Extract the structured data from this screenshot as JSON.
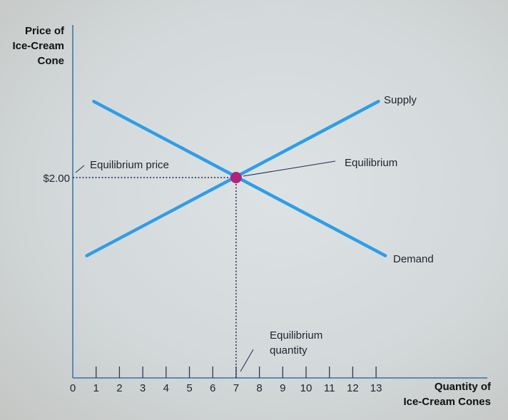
{
  "chart_data": {
    "type": "line",
    "title": "",
    "ylabel_lines": [
      "Price of",
      "Ice-Cream",
      "Cone"
    ],
    "xlabel_lines": [
      "Quantity of",
      "Ice-Cream Cones"
    ],
    "x_ticks": [
      "0",
      "1",
      "2",
      "3",
      "4",
      "5",
      "6",
      "7",
      "8",
      "9",
      "10",
      "11",
      "12",
      "13"
    ],
    "xlim": [
      0,
      17.7
    ],
    "ylim": [
      0,
      3.5
    ],
    "y_tick_label": "$2.00",
    "y_tick_value": 2.0,
    "series": [
      {
        "name": "Supply",
        "color": "#2f9de8",
        "points": [
          [
            0.6,
            1.22
          ],
          [
            13.1,
            2.76
          ]
        ]
      },
      {
        "name": "Demand",
        "color": "#2f9de8",
        "points": [
          [
            0.9,
            2.76
          ],
          [
            13.4,
            1.22
          ]
        ]
      }
    ],
    "equilibrium": {
      "x": 7,
      "y": 2.0,
      "color": "#b0257a",
      "label": "Equilibrium"
    },
    "annotations": {
      "equilibrium_price": "Equilibrium price",
      "equilibrium_quantity_lines": [
        "Equilibrium",
        "quantity"
      ]
    },
    "grid": false
  }
}
